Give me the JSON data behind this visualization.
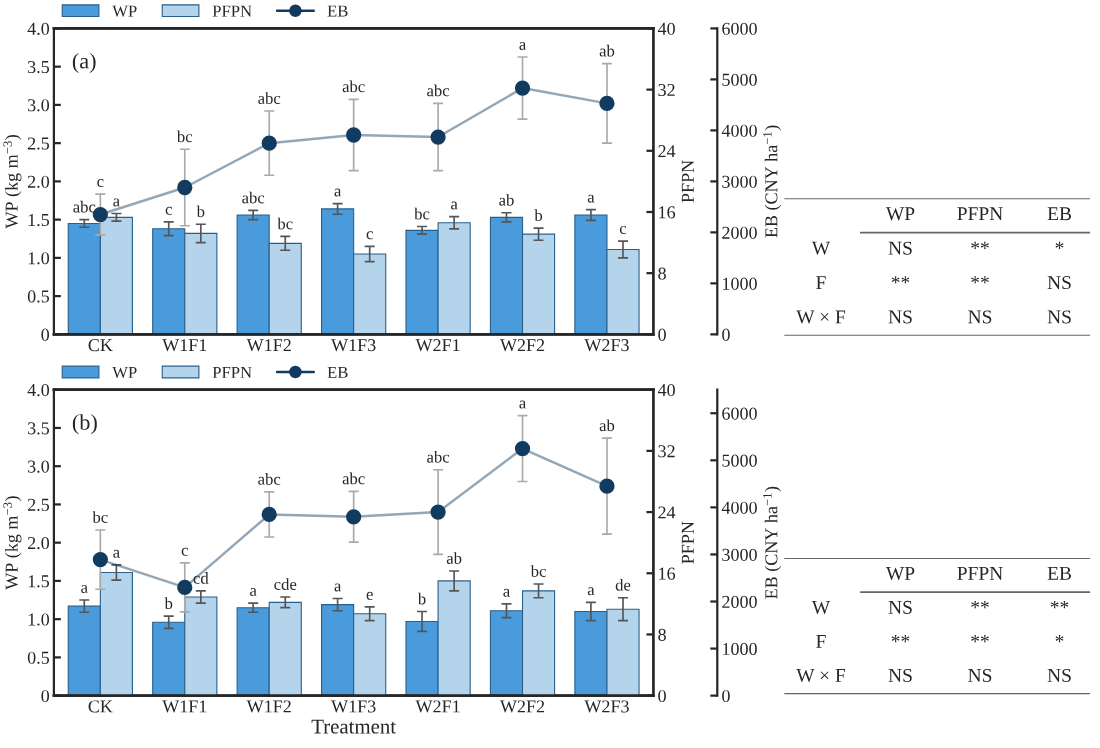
{
  "chart_data": [
    {
      "type": "bar",
      "title": "(a)",
      "categories": [
        "CK",
        "W1F1",
        "W1F2",
        "W1F3",
        "W2F1",
        "W2F2",
        "W2F3"
      ],
      "ylabel": "WP (kg m$^{−3}$)",
      "y2label": "PFPN",
      "y3label": "EB (CNY ha$^{−1}$)",
      "ylim": [
        0,
        4
      ],
      "yticks": [
        0,
        {
          "value": 0.5,
          "label": "0.5"
        },
        {
          "value": 1,
          "label": "1.0"
        },
        {
          "value": 1.5,
          "label": "1.5"
        },
        {
          "value": 2,
          "label": "2.0"
        },
        {
          "value": 2.5,
          "label": "2.5"
        },
        {
          "value": 3,
          "label": "3.0"
        },
        {
          "value": 3.5,
          "label": "3.5"
        },
        {
          "value": 4,
          "label": "4.0"
        }
      ],
      "y2lim": [
        0,
        40
      ],
      "y2ticks": [
        0,
        8,
        16,
        24,
        32,
        40
      ],
      "y3lim": [
        0,
        6000
      ],
      "y3ticks": [
        0,
        1000,
        2000,
        3000,
        4000,
        5000,
        6000
      ],
      "legend": "top",
      "grid": false,
      "series": [
        {
          "name": "WP",
          "type": "bar",
          "color": "#4a9bdb",
          "values": [
            1.45,
            1.38,
            1.56,
            1.64,
            1.36,
            1.53,
            1.56
          ],
          "errors": [
            0.05,
            0.09,
            0.06,
            0.07,
            0.05,
            0.06,
            0.07
          ],
          "value_labels": [
            "abc",
            "c",
            "abc",
            "a",
            "bc",
            "ab",
            "a"
          ]
        },
        {
          "name": "PFPN",
          "type": "bar",
          "axis": "y2",
          "color": "#b4d4ec",
          "values": [
            15.3,
            13.2,
            11.9,
            10.5,
            14.6,
            13.1,
            11.1
          ],
          "errors": [
            0.5,
            1.2,
            0.9,
            1.0,
            0.8,
            0.8,
            1.1
          ],
          "value_labels": [
            "a",
            "b",
            "bc",
            "c",
            "a",
            "b",
            "c"
          ]
        },
        {
          "name": "EB",
          "type": "line",
          "axis": "y3",
          "marker": "circle",
          "color": "#113c60",
          "values": [
            2350,
            2880,
            3750,
            3910,
            3870,
            4830,
            4530
          ],
          "errors": [
            400,
            750,
            630,
            700,
            660,
            610,
            780
          ],
          "value_labels": [
            "c",
            "bc",
            "abc",
            "abc",
            "abc",
            "a",
            "ab"
          ]
        }
      ]
    },
    {
      "type": "other",
      "categories": [
        "WP",
        "PFPN",
        "EB"
      ],
      "y_categories": [
        "W",
        "F",
        "W × F"
      ],
      "cell_labels": [
        [
          "NS",
          "**",
          "*"
        ],
        [
          "**",
          "**",
          "NS"
        ],
        [
          "NS",
          "NS",
          "NS"
        ]
      ]
    },
    {
      "type": "bar",
      "title": "(b)",
      "categories": [
        "CK",
        "W1F1",
        "W1F2",
        "W1F3",
        "W2F1",
        "W2F2",
        "W2F3"
      ],
      "xlabel": "Treatment",
      "ylabel": "WP (kg m$^{−3}$)",
      "y2label": "PFPN",
      "y3label": "EB (CNY ha$^{−1}$)",
      "ylim": [
        0,
        4
      ],
      "yticks": [
        0,
        {
          "value": 0.5,
          "label": "0.5"
        },
        {
          "value": 1,
          "label": "1.0"
        },
        {
          "value": 1.5,
          "label": "1.5"
        },
        {
          "value": 2,
          "label": "2.0"
        },
        {
          "value": 2.5,
          "label": "2.5"
        },
        {
          "value": 3,
          "label": "3.0"
        },
        {
          "value": 3.5,
          "label": "3.5"
        },
        {
          "value": 4,
          "label": "4.0"
        }
      ],
      "y2lim": [
        0,
        40
      ],
      "y2ticks": [
        0,
        8,
        16,
        24,
        32,
        40
      ],
      "y3lim": [
        0,
        6500
      ],
      "y3ticks": [
        0,
        1000,
        2000,
        3000,
        4000,
        5000,
        6000
      ],
      "legend": "top",
      "grid": false,
      "series": [
        {
          "name": "WP",
          "type": "bar",
          "color": "#4a9bdb",
          "values": [
            1.17,
            0.96,
            1.15,
            1.19,
            0.97,
            1.11,
            1.1
          ],
          "errors": [
            0.08,
            0.08,
            0.06,
            0.08,
            0.13,
            0.09,
            0.12
          ],
          "value_labels": [
            "a",
            "b",
            "a",
            "a",
            "b",
            "a",
            "a"
          ]
        },
        {
          "name": "PFPN",
          "type": "bar",
          "axis": "y2",
          "color": "#b4d4ec",
          "values": [
            16.1,
            12.9,
            12.2,
            10.7,
            15.0,
            13.7,
            11.3
          ],
          "errors": [
            1.0,
            0.8,
            0.7,
            0.9,
            1.3,
            0.9,
            1.5
          ],
          "value_labels": [
            "a",
            "cd",
            "cde",
            "e",
            "ab",
            "bc",
            "de"
          ]
        },
        {
          "name": "EB",
          "type": "line",
          "axis": "y3",
          "marker": "circle",
          "color": "#113c60",
          "values": [
            2890,
            2300,
            3850,
            3800,
            3900,
            5250,
            4450
          ],
          "errors": [
            630,
            520,
            480,
            540,
            900,
            700,
            1020
          ],
          "value_labels": [
            "bc",
            "c",
            "abc",
            "abc",
            "abc",
            "a",
            "ab"
          ]
        }
      ]
    },
    {
      "type": "other",
      "categories": [
        "WP",
        "PFPN",
        "EB"
      ],
      "y_categories": [
        "W",
        "F",
        "W × F"
      ],
      "cell_labels": [
        [
          "NS",
          "**",
          "**"
        ],
        [
          "**",
          "**",
          "*"
        ],
        [
          "NS",
          "NS",
          "NS"
        ]
      ]
    }
  ]
}
